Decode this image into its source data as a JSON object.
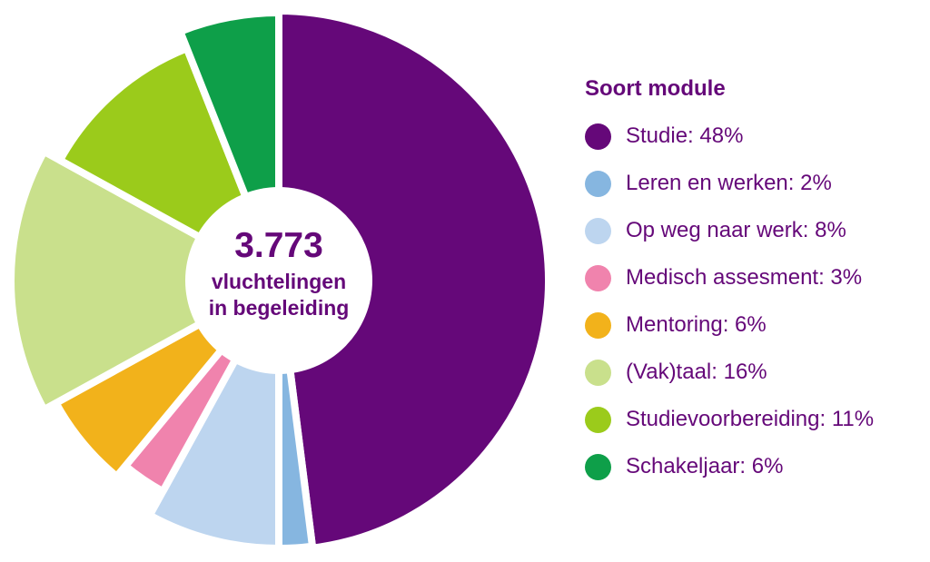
{
  "chart_data": {
    "type": "pie",
    "title": "",
    "center": {
      "value": "3.773",
      "line1": "vluchtelingen",
      "line2": "in begeleiding"
    },
    "legend_title": "Soort module",
    "legend_placement": "right",
    "slices": [
      {
        "name": "Studie",
        "value": 48,
        "label": "Studie: 48%",
        "color": "#650879"
      },
      {
        "name": "Leren en werken",
        "value": 2,
        "label": "Leren en werken: 2%",
        "color": "#86b6e0"
      },
      {
        "name": "Op weg naar werk",
        "value": 8,
        "label": "Op weg naar werk: 8%",
        "color": "#bdd5ef"
      },
      {
        "name": "Medisch assesment",
        "value": 3,
        "label": "Medisch assesment: 3%",
        "color": "#f083ad"
      },
      {
        "name": "Mentoring",
        "value": 6,
        "label": "Mentoring: 6%",
        "color": "#f2b21b"
      },
      {
        "name": "(Vak)taal",
        "value": 16,
        "label": "(Vak)taal: 16%",
        "color": "#c9e08c"
      },
      {
        "name": "Studievoorbereiding",
        "value": 11,
        "label": "Studievoorbereiding: 11%",
        "color": "#9bcb1b"
      },
      {
        "name": "Schakeljaar",
        "value": 6,
        "label": "Schakeljaar: 6%",
        "color": "#0e9f49"
      }
    ]
  }
}
